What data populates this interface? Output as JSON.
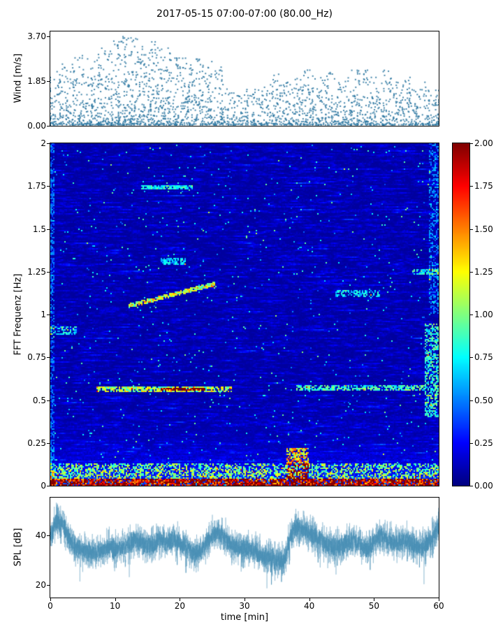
{
  "title": "2017-05-15 07:00-07:00 (80.00_Hz)",
  "panels": {
    "wind": {
      "ylabel": "Wind [m/s]",
      "ylim": [
        0,
        3.9
      ],
      "yticks": [
        {
          "label": "3.70",
          "value": 3.7
        },
        {
          "label": "1.85",
          "value": 1.85
        },
        {
          "label": "0.00",
          "value": 0
        }
      ]
    },
    "spectrogram": {
      "ylabel": "FFT Frequenz [Hz]",
      "ylim": [
        0,
        2
      ],
      "yticks": [
        {
          "label": "2",
          "value": 2
        },
        {
          "label": "1.75",
          "value": 1.75
        },
        {
          "label": "1.5",
          "value": 1.5
        },
        {
          "label": "1.25",
          "value": 1.25
        },
        {
          "label": "1",
          "value": 1
        },
        {
          "label": "0.75",
          "value": 0.75
        },
        {
          "label": "0.5",
          "value": 0.5
        },
        {
          "label": "0.25",
          "value": 0.25
        },
        {
          "label": "0",
          "value": 0
        }
      ]
    },
    "colorbar": {
      "lim": [
        0,
        2
      ],
      "colormap": "jet",
      "ticks": [
        {
          "label": "2.00",
          "value": 2
        },
        {
          "label": "1.75",
          "value": 1.75
        },
        {
          "label": "1.50",
          "value": 1.5
        },
        {
          "label": "1.25",
          "value": 1.25
        },
        {
          "label": "1.00",
          "value": 1
        },
        {
          "label": "0.75",
          "value": 0.75
        },
        {
          "label": "0.50",
          "value": 0.5
        },
        {
          "label": "0.25",
          "value": 0.25
        },
        {
          "label": "0.00",
          "value": 0
        }
      ]
    },
    "spl": {
      "ylabel": "SPL [dB]",
      "ylim": [
        15,
        55
      ],
      "yticks": [
        {
          "label": "40",
          "value": 40
        },
        {
          "label": "20",
          "value": 20
        }
      ]
    },
    "x": {
      "label": "time [min]",
      "lim": [
        0,
        60
      ],
      "ticks": [
        {
          "label": "0",
          "value": 0
        },
        {
          "label": "10",
          "value": 10
        },
        {
          "label": "20",
          "value": 20
        },
        {
          "label": "30",
          "value": 30
        },
        {
          "label": "40",
          "value": 40
        },
        {
          "label": "50",
          "value": 50
        },
        {
          "label": "60",
          "value": 60
        }
      ]
    }
  },
  "chart_data": [
    {
      "type": "scatter",
      "name": "wind-speed",
      "ylabel": "Wind [m/s]",
      "xlabel": "time [min]",
      "xlim": [
        0,
        60
      ],
      "ylim": [
        0,
        3.9
      ],
      "marker_color": "#2b76a0",
      "x_minutes": [
        0,
        1,
        2,
        3,
        4,
        5,
        6,
        7,
        8,
        9,
        10,
        11,
        12,
        13,
        14,
        15,
        16,
        17,
        18,
        19,
        20,
        21,
        22,
        23,
        24,
        25,
        26,
        27,
        28,
        29,
        30,
        31,
        32,
        33,
        34,
        35,
        36,
        37,
        38,
        39,
        40,
        41,
        42,
        43,
        44,
        45,
        46,
        47,
        48,
        49,
        50,
        51,
        52,
        53,
        54,
        55,
        56,
        57,
        58,
        59,
        60
      ],
      "mean_values": [
        0.7,
        0.8,
        0.9,
        0.9,
        1.0,
        1.0,
        1.1,
        1.2,
        1.2,
        1.1,
        1.3,
        1.4,
        1.6,
        1.5,
        1.3,
        1.3,
        1.4,
        1.3,
        1.2,
        1.1,
        1.0,
        1.1,
        1.0,
        1.0,
        0.9,
        1.0,
        0.9,
        0.6,
        0.5,
        0.45,
        0.5,
        0.45,
        0.5,
        0.55,
        0.7,
        0.8,
        0.7,
        0.6,
        0.8,
        0.9,
        0.8,
        0.7,
        0.7,
        0.8,
        0.7,
        0.6,
        0.7,
        0.8,
        0.9,
        0.8,
        0.7,
        0.7,
        0.8,
        0.7,
        0.6,
        0.7,
        0.6,
        0.5,
        0.6,
        0.5,
        0.5
      ],
      "max_values": [
        2.0,
        2.3,
        2.6,
        2.6,
        2.9,
        2.9,
        3.1,
        3.3,
        3.3,
        3.1,
        3.5,
        3.7,
        3.7,
        3.6,
        3.4,
        3.4,
        3.5,
        3.4,
        3.3,
        3.0,
        2.8,
        2.9,
        2.8,
        2.8,
        2.6,
        2.8,
        2.6,
        1.8,
        1.5,
        1.3,
        1.5,
        1.3,
        1.5,
        1.6,
        2.0,
        2.2,
        2.0,
        1.8,
        2.3,
        2.5,
        2.3,
        2.0,
        2.0,
        2.3,
        2.0,
        1.8,
        2.0,
        2.3,
        2.5,
        2.3,
        2.0,
        2.0,
        2.3,
        2.0,
        1.8,
        2.0,
        1.8,
        1.5,
        1.8,
        1.5,
        1.5
      ]
    },
    {
      "type": "heatmap",
      "name": "fft-spectrogram",
      "ylabel": "FFT Frequenz [Hz]",
      "xlim": [
        0,
        60
      ],
      "ylim": [
        0,
        2
      ],
      "colormap": "jet",
      "clim": [
        0,
        2
      ],
      "background_level": 0.15,
      "low_freq_boost": {
        "amplitude": 0.35,
        "decay_hz": 0.12
      },
      "features": [
        {
          "name": "surface-band",
          "t0": 0,
          "t1": 60,
          "f0": 0.0,
          "f1": 0.035,
          "value": 1.9,
          "patchy": 0.85
        },
        {
          "name": "low-band",
          "t0": 0,
          "t1": 60,
          "f0": 0.035,
          "f1": 0.13,
          "value": 0.9,
          "patchy": 0.5
        },
        {
          "name": "microseism-left",
          "t0": 7,
          "t1": 28,
          "f0": 0.545,
          "f1": 0.575,
          "value": 1.2,
          "patchy": 0.8
        },
        {
          "name": "microseism-core",
          "t0": 17,
          "t1": 24,
          "f0": 0.55,
          "f1": 0.572,
          "value": 1.8,
          "patchy": 0.95
        },
        {
          "name": "microseism-right",
          "t0": 38,
          "t1": 58,
          "f0": 0.555,
          "f1": 0.585,
          "value": 0.9,
          "patchy": 0.7
        },
        {
          "name": "ascending-tone",
          "t0": 12,
          "t1": 25.5,
          "f0": 1.05,
          "f1": 1.18,
          "value": 1.3,
          "slope": true,
          "patchy": 0.9
        },
        {
          "name": "tone-1p75",
          "t0": 14,
          "t1": 22,
          "f0": 1.735,
          "f1": 1.755,
          "value": 0.85,
          "patchy": 0.8
        },
        {
          "name": "patch-0p9-left",
          "t0": 0,
          "t1": 4,
          "f0": 0.88,
          "f1": 0.93,
          "value": 0.75,
          "patchy": 0.6
        },
        {
          "name": "patch-1p1-right",
          "t0": 44,
          "t1": 51,
          "f0": 1.1,
          "f1": 1.14,
          "value": 0.7,
          "patchy": 0.6
        },
        {
          "name": "burst-37min",
          "t0": 36.5,
          "t1": 40,
          "f0": 0.03,
          "f1": 0.22,
          "value": 1.4,
          "patchy": 0.6
        },
        {
          "name": "right-edge-mid",
          "t0": 58,
          "t1": 60,
          "f0": 0.4,
          "f1": 0.95,
          "value": 0.85,
          "patchy": 0.6
        },
        {
          "name": "tone-1p25-right",
          "t0": 56,
          "t1": 60,
          "f0": 1.23,
          "f1": 1.27,
          "value": 0.8,
          "patchy": 0.7
        },
        {
          "name": "patch-1p3",
          "t0": 17,
          "t1": 21,
          "f0": 1.29,
          "f1": 1.33,
          "value": 0.7,
          "patchy": 0.7
        },
        {
          "name": "right-edge-upper",
          "t0": 58.5,
          "t1": 60,
          "f0": 1.0,
          "f1": 2.0,
          "value": 0.5,
          "patchy": 0.4
        },
        {
          "name": "left-edge",
          "t0": 0,
          "t1": 0.5,
          "f0": 0.0,
          "f1": 2.0,
          "value": 0.45,
          "patchy": 0.5
        }
      ]
    },
    {
      "type": "line",
      "name": "spl-level",
      "ylabel": "SPL [dB]",
      "xlim": [
        0,
        60
      ],
      "ylim": [
        15,
        55
      ],
      "color": "#4a8fb5",
      "noise_amplitude_db": 4.5,
      "x_minutes": [
        0,
        1,
        2,
        3,
        4,
        5,
        6,
        7,
        8,
        9,
        10,
        11,
        12,
        13,
        14,
        15,
        16,
        17,
        18,
        19,
        20,
        21,
        22,
        23,
        24,
        25,
        26,
        27,
        28,
        29,
        30,
        31,
        32,
        33,
        34,
        35,
        36,
        37,
        38,
        39,
        40,
        41,
        42,
        43,
        44,
        45,
        46,
        47,
        48,
        49,
        50,
        51,
        52,
        53,
        54,
        55,
        56,
        57,
        58,
        59,
        60
      ],
      "mean_values": [
        40,
        46,
        44,
        38,
        35,
        34,
        33,
        33,
        34,
        35,
        34,
        35,
        36,
        38,
        37,
        36,
        36,
        38,
        37,
        38,
        37,
        35,
        33,
        33,
        36,
        40,
        41,
        39,
        36,
        35,
        35,
        34,
        33,
        31,
        31,
        30,
        29,
        38,
        44,
        42,
        41,
        39,
        38,
        36,
        35,
        36,
        37,
        38,
        36,
        34,
        37,
        40,
        38,
        37,
        37,
        38,
        36,
        35,
        36,
        39,
        43
      ]
    }
  ]
}
